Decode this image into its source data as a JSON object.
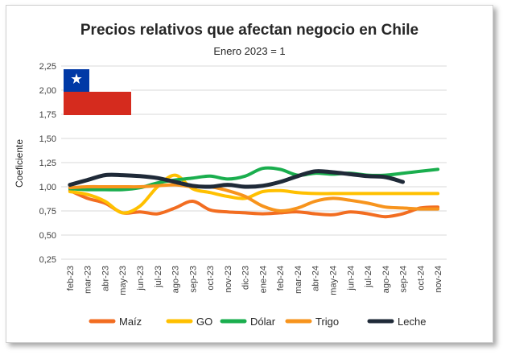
{
  "chart_data": {
    "type": "line",
    "title": "Precios relativos que afectan negocio en Chile",
    "subtitle": "Enero 2023 = 1",
    "xlabel": "",
    "ylabel": "Coeficiente",
    "ylim": [
      0.25,
      2.25
    ],
    "yticks": [
      "0,25",
      "0,50",
      "0,75",
      "1,00",
      "1,25",
      "1,50",
      "1,75",
      "2,00",
      "2,25"
    ],
    "grid": true,
    "legend_position": "bottom",
    "categories": [
      "feb-23",
      "mar-23",
      "abr-23",
      "may-23",
      "jun-23",
      "jul-23",
      "ago-23",
      "sep-23",
      "oct-23",
      "nov-23",
      "dic-23",
      "ene-24",
      "feb-24",
      "mar-24",
      "abr-24",
      "may-24",
      "jun-24",
      "jul-24",
      "ago-24",
      "sep-24",
      "oct-24",
      "nov-24"
    ],
    "series": [
      {
        "name": "Maíz",
        "color": "#f26d21",
        "values": [
          0.96,
          0.88,
          0.83,
          0.73,
          0.74,
          0.72,
          0.78,
          0.85,
          0.76,
          0.74,
          0.73,
          0.72,
          0.73,
          0.74,
          0.72,
          0.71,
          0.74,
          0.72,
          0.69,
          0.72,
          0.78,
          0.79
        ]
      },
      {
        "name": "GO",
        "color": "#ffc000",
        "values": [
          0.95,
          0.92,
          0.85,
          0.73,
          0.8,
          1.0,
          1.12,
          0.98,
          0.94,
          0.9,
          0.88,
          0.95,
          0.96,
          0.94,
          0.93,
          0.93,
          0.93,
          0.93,
          0.93,
          0.93,
          0.93,
          0.93
        ]
      },
      {
        "name": "Dólar",
        "color": "#1aae4e",
        "values": [
          0.98,
          0.97,
          0.97,
          0.97,
          0.99,
          1.04,
          1.07,
          1.09,
          1.11,
          1.08,
          1.11,
          1.19,
          1.18,
          1.12,
          1.14,
          1.13,
          1.14,
          1.12,
          1.12,
          1.14,
          1.16,
          1.18
        ]
      },
      {
        "name": "Trigo",
        "color": "#f7941d",
        "values": [
          0.99,
          1.0,
          1.0,
          1.0,
          1.0,
          1.01,
          1.02,
          1.0,
          1.0,
          0.96,
          0.9,
          0.8,
          0.75,
          0.78,
          0.85,
          0.88,
          0.86,
          0.83,
          0.79,
          0.78,
          0.77,
          0.77
        ]
      },
      {
        "name": "Leche",
        "color": "#1f2a38",
        "values": [
          1.02,
          1.07,
          1.12,
          1.12,
          1.11,
          1.09,
          1.05,
          1.01,
          1.0,
          1.02,
          1.0,
          1.01,
          1.05,
          1.11,
          1.16,
          1.15,
          1.13,
          1.11,
          1.1,
          1.05,
          null,
          null
        ]
      }
    ]
  },
  "flag": {
    "name": "Chile",
    "colors": {
      "blue": "#0039a6",
      "white": "#ffffff",
      "red": "#d52b1e"
    }
  }
}
